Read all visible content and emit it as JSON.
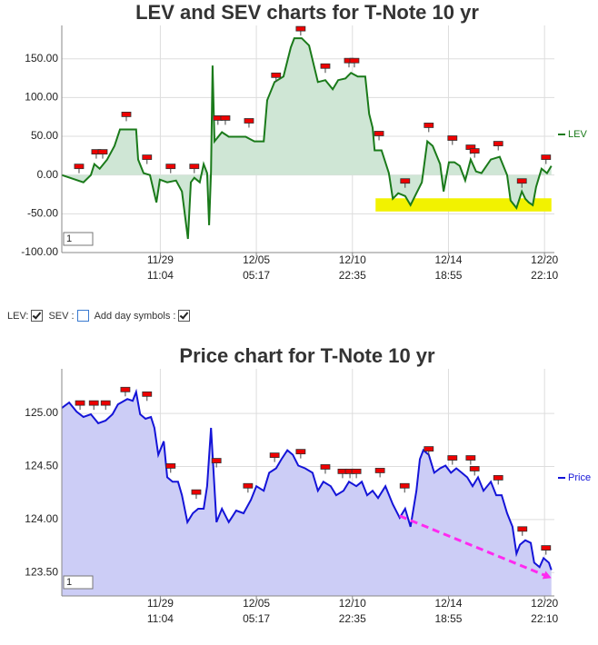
{
  "chart_data": [
    {
      "type": "area",
      "title": "LEV and SEV charts for T-Note 10 yr",
      "input_value": "1",
      "legend": "right",
      "grid": true,
      "xlim": [
        0,
        100
      ],
      "xticks": [
        {
          "value": 20,
          "label": "11/29\n11:04"
        },
        {
          "value": 39.5,
          "label": "12/05\n05:17"
        },
        {
          "value": 59,
          "label": "12/10\n22:35"
        },
        {
          "value": 78.5,
          "label": "12/14\n18:55"
        },
        {
          "value": 98,
          "label": "12/20\n22:10"
        }
      ],
      "ylim": [
        -100,
        193
      ],
      "yticks": [
        {
          "value": -100,
          "label": "-100.00"
        },
        {
          "value": -50,
          "label": "-50.00"
        },
        {
          "value": 0,
          "label": "0.00"
        },
        {
          "value": 50,
          "label": "50.00"
        },
        {
          "value": 100,
          "label": "100.00"
        },
        {
          "value": 150,
          "label": "150.00"
        }
      ],
      "series": [
        {
          "name": "LEV",
          "color": "#1a7a1a",
          "fill": "#cfe6d5",
          "base": 0,
          "x": [
            0,
            2.2,
            4.4,
            5.9,
            6.6,
            7.7,
            9.2,
            10.7,
            11.8,
            14.4,
            15.1,
            15.5,
            16.6,
            17.9,
            19.2,
            19.9,
            21.4,
            23.2,
            24.4,
            25.1,
            25.6,
            26.2,
            26.9,
            28.0,
            28.8,
            29.5,
            29.9,
            30.3,
            30.6,
            31.0,
            32.5,
            33.9,
            35.8,
            37.3,
            39.1,
            41.0,
            41.7,
            43.2,
            45.0,
            46.5,
            47.2,
            48.7,
            50.2,
            52.0,
            53.5,
            55.0,
            56.1,
            57.6,
            58.7,
            60.1,
            61.6,
            62.4,
            63.1,
            63.5,
            64.9,
            66.4,
            67.2,
            68.3,
            69.7,
            70.8,
            72.0,
            73.1,
            74.2,
            75.3,
            76.8,
            77.5,
            78.6,
            79.7,
            80.8,
            81.9,
            83.0,
            84.1,
            85.2,
            87.1,
            88.9,
            90.4,
            91.1,
            92.3,
            93.4,
            94.1,
            94.8,
            95.6,
            96.3,
            97.4,
            98.5,
            99.4
          ],
          "values": [
            0,
            -4.7,
            -9.4,
            0,
            14.1,
            8.2,
            20.0,
            37.6,
            58.8,
            58.8,
            58.8,
            20.0,
            2.4,
            0,
            -35.3,
            -5.9,
            -9.4,
            -7.1,
            -21.2,
            -56.5,
            -82.4,
            -9.4,
            -3.5,
            -9.4,
            14.1,
            2.4,
            -64.7,
            4.7,
            141.2,
            43.5,
            55.3,
            49.4,
            49.4,
            49.4,
            43.5,
            43.5,
            96.5,
            120,
            127.1,
            164.7,
            176.5,
            176.5,
            167.1,
            120,
            122.4,
            110.6,
            122.4,
            124.7,
            131.8,
            127.1,
            127.1,
            78.8,
            61.2,
            31.8,
            31.8,
            2.4,
            -30.6,
            -23.5,
            -27.1,
            -38.8,
            -23.5,
            -9.4,
            43.5,
            37.6,
            14.1,
            -21.2,
            16.5,
            16.5,
            11.8,
            -7.1,
            20.0,
            4.7,
            2.4,
            20.0,
            23.5,
            0,
            -32.9,
            -42.4,
            -21.2,
            -30.6,
            -35.3,
            -38.8,
            -15.3,
            8.2,
            2.4,
            11.8
          ],
          "symbols": {
            "x": [
              3.5,
              7.0,
              8.3,
              13.1,
              17.3,
              22.1,
              26.9,
              31.7,
              33.2,
              38.0,
              43.5,
              48.5,
              53.5,
              58.3,
              59.4,
              64.4,
              69.7,
              74.5,
              79.3,
              83.0,
              83.8,
              88.6,
              93.4,
              98.3
            ],
            "y": [
              9.4,
              28.2,
              28.2,
              76.5,
              21.2,
              9.4,
              9.4,
              71.8,
              71.8,
              68.2,
              127,
              187,
              138.8,
              145.9,
              145.9,
              51.8,
              -9.4,
              62.4,
              45.9,
              34.1,
              29.4,
              38.8,
              -9.4,
              21.2
            ]
          }
        }
      ],
      "highlight": {
        "x": [
          63.7,
          99.4
        ],
        "y": [
          -47,
          -30
        ],
        "color": "#f2f200"
      }
    },
    {
      "type": "area",
      "title": "Price chart for T-Note 10 yr",
      "input_value": "1",
      "legend": "right",
      "grid": true,
      "xlim": [
        0,
        100
      ],
      "xticks": [
        {
          "value": 20,
          "label": "11/29\n11:04"
        },
        {
          "value": 39.5,
          "label": "12/05\n05:17"
        },
        {
          "value": 59,
          "label": "12/10\n22:35"
        },
        {
          "value": 78.5,
          "label": "12/14\n18:55"
        },
        {
          "value": 98,
          "label": "12/20\n22:10"
        }
      ],
      "ylim": [
        123.28,
        125.42
      ],
      "yticks": [
        {
          "value": 123.5,
          "label": "123.50"
        },
        {
          "value": 124,
          "label": "124.00"
        },
        {
          "value": 124.5,
          "label": "124.50"
        },
        {
          "value": 125,
          "label": "125.00"
        }
      ],
      "series": [
        {
          "name": "Price",
          "color": "#1414d8",
          "fill": "#cccdf6",
          "x": [
            0,
            1.5,
            3.0,
            4.4,
            5.9,
            7.4,
            8.9,
            10.3,
            11.4,
            13.3,
            14.4,
            15.1,
            15.9,
            17.0,
            18.1,
            18.8,
            19.6,
            20.7,
            21.4,
            22.5,
            23.6,
            24.4,
            25.5,
            26.6,
            27.7,
            28.8,
            29.5,
            30.3,
            30.6,
            31.4,
            32.5,
            33.9,
            35.4,
            36.9,
            38.4,
            39.5,
            41.0,
            42.1,
            43.5,
            44.6,
            45.8,
            46.9,
            48.0,
            49.4,
            50.9,
            52.0,
            53.1,
            54.6,
            55.7,
            57.2,
            58.3,
            59.8,
            60.9,
            62.0,
            63.1,
            64.2,
            65.7,
            67.2,
            68.6,
            69.7,
            70.8,
            72.0,
            72.7,
            73.4,
            74.5,
            75.6,
            76.8,
            77.9,
            79.0,
            80.1,
            81.2,
            82.3,
            83.4,
            84.5,
            85.6,
            87.1,
            88.2,
            89.3,
            90.4,
            91.5,
            92.3,
            93.0,
            94.1,
            95.2,
            95.9,
            97.0,
            97.8,
            98.9,
            99.4
          ],
          "values": [
            125.051,
            125.102,
            125.017,
            124.966,
            124.992,
            124.907,
            124.932,
            124.992,
            125.085,
            125.136,
            125.119,
            125.203,
            124.992,
            124.949,
            124.966,
            124.864,
            124.61,
            124.737,
            124.398,
            124.356,
            124.356,
            124.229,
            123.975,
            124.059,
            124.102,
            124.102,
            124.314,
            124.864,
            124.61,
            123.975,
            124.102,
            123.975,
            124.085,
            124.059,
            124.186,
            124.314,
            124.271,
            124.441,
            124.483,
            124.568,
            124.653,
            124.61,
            124.508,
            124.483,
            124.441,
            124.271,
            124.356,
            124.314,
            124.229,
            124.271,
            124.356,
            124.314,
            124.356,
            124.229,
            124.271,
            124.203,
            124.314,
            124.144,
            124.017,
            124.102,
            123.932,
            124.271,
            124.568,
            124.653,
            124.61,
            124.441,
            124.483,
            124.508,
            124.441,
            124.483,
            124.441,
            124.398,
            124.314,
            124.398,
            124.271,
            124.356,
            124.229,
            124.229,
            124.059,
            123.932,
            123.678,
            123.763,
            123.805,
            123.78,
            123.593,
            123.551,
            123.636,
            123.593,
            123.525
          ],
          "symbols": {
            "x": [
              3.7,
              6.5,
              8.9,
              12.9,
              17.3,
              22.1,
              27.3,
              31.4,
              37.8,
              43.2,
              48.5,
              53.5,
              57.0,
              58.5,
              59.8,
              64.6,
              69.6,
              74.5,
              79.3,
              83.0,
              83.8,
              88.6,
              93.5,
              98.3
            ],
            "y": [
              125.085,
              125.085,
              125.085,
              125.212,
              125.169,
              124.492,
              124.246,
              124.542,
              124.305,
              124.593,
              124.627,
              124.483,
              124.441,
              124.441,
              124.441,
              124.449,
              124.305,
              124.653,
              124.568,
              124.568,
              124.466,
              124.381,
              123.898,
              123.72
            ]
          }
        }
      ],
      "trend_arrow": {
        "x": [
          68.6,
          99.4
        ],
        "y": [
          124.034,
          123.449
        ],
        "color": "#ff2af0"
      }
    }
  ],
  "controls": [
    {
      "label": "LEV:",
      "checked": true
    },
    {
      "label": "SEV :",
      "checked": false
    },
    {
      "label": "Add day symbols :",
      "checked": true
    }
  ]
}
